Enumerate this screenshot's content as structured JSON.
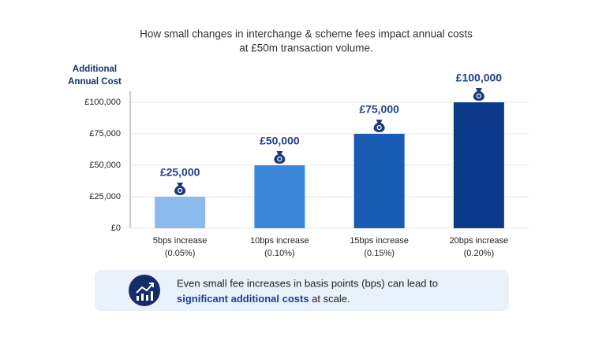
{
  "chart_data": {
    "type": "bar",
    "title": [
      "How small changes in interchange & scheme fees impact annual costs",
      "at £50m transaction volume."
    ],
    "y_label": [
      "Additional",
      "Annual Cost"
    ],
    "categories": [
      [
        "5bps increase",
        "(0.05%)"
      ],
      [
        "10bps increase",
        "(0.10%)"
      ],
      [
        "15bps increase",
        "(0.15%)"
      ],
      [
        "20bps increase",
        "(0.20%)"
      ]
    ],
    "values": [
      25000,
      50000,
      75000,
      100000
    ],
    "value_labels": [
      "£25,000",
      "£50,000",
      "£75,000",
      "£100,000"
    ],
    "colors": [
      "#8cbaec",
      "#3b86d9",
      "#1a5bb6",
      "#0c3a8a"
    ],
    "ylim": [
      0,
      100000
    ],
    "yticks": [
      {
        "value": 0,
        "label": "£0"
      },
      {
        "value": 25000,
        "label": "£25,000"
      },
      {
        "value": 50000,
        "label": "£50,000"
      },
      {
        "value": 75000,
        "label": "£75,000"
      },
      {
        "value": 100000,
        "label": "£100,000"
      }
    ],
    "grid": true,
    "callout": {
      "line1": "Even small fee increases in basis points (bps) can lead to",
      "bold": "significant additional costs",
      "rest": " at scale."
    }
  }
}
